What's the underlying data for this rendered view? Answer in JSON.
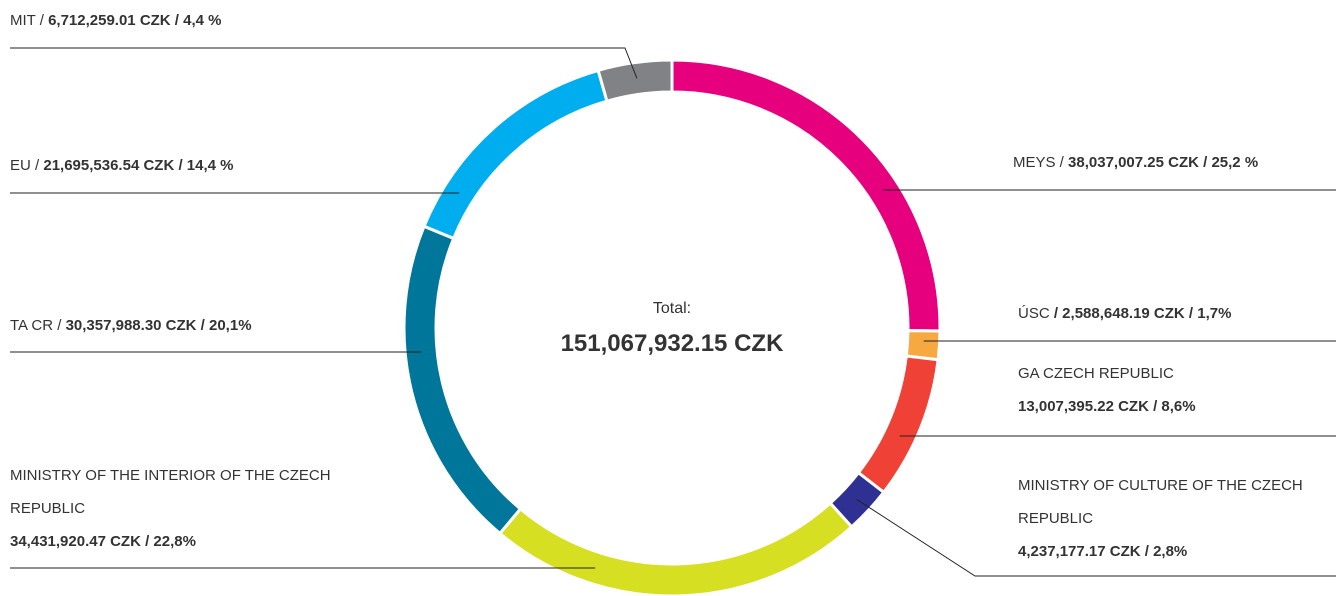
{
  "chart_data": {
    "type": "donut",
    "center_label": "Total:",
    "total": "151,067,932.15 CZK",
    "categories": [
      "MEYS /",
      "ÚSC",
      "GA CZECH REPUBLIC",
      "MINISTRY OF CULTURE OF THE CZECH REPUBLIC",
      "MINISTRY OF THE INTERIOR OF THE CZECH REPUBLIC",
      "TA CR /",
      "EU /",
      "MIT /"
    ],
    "values": [
      38037007.25,
      2588648.19,
      13007395.22,
      4237177.17,
      34431920.47,
      30357988.3,
      21695536.54,
      6712259.01
    ],
    "value_labels": [
      "38,037,007.25 CZK / 25,2 %",
      "/ 2,588,648.19 CZK / 1,7%",
      "13,007,395.22 CZK / 8,6%",
      "4,237,177.17 CZK / 2,8%",
      "34,431,920.47 CZK / 22,8%",
      "30,357,988.30 CZK / 20,1%",
      "21,695,536.54 CZK / 14,4 %",
      "6,712,259.01 CZK / 4,4 %"
    ],
    "colors": [
      "#e6007e",
      "#f7a941",
      "#ef4136",
      "#2e3192",
      "#d7df23",
      "#00769a",
      "#00aeef",
      "#808285"
    ]
  }
}
